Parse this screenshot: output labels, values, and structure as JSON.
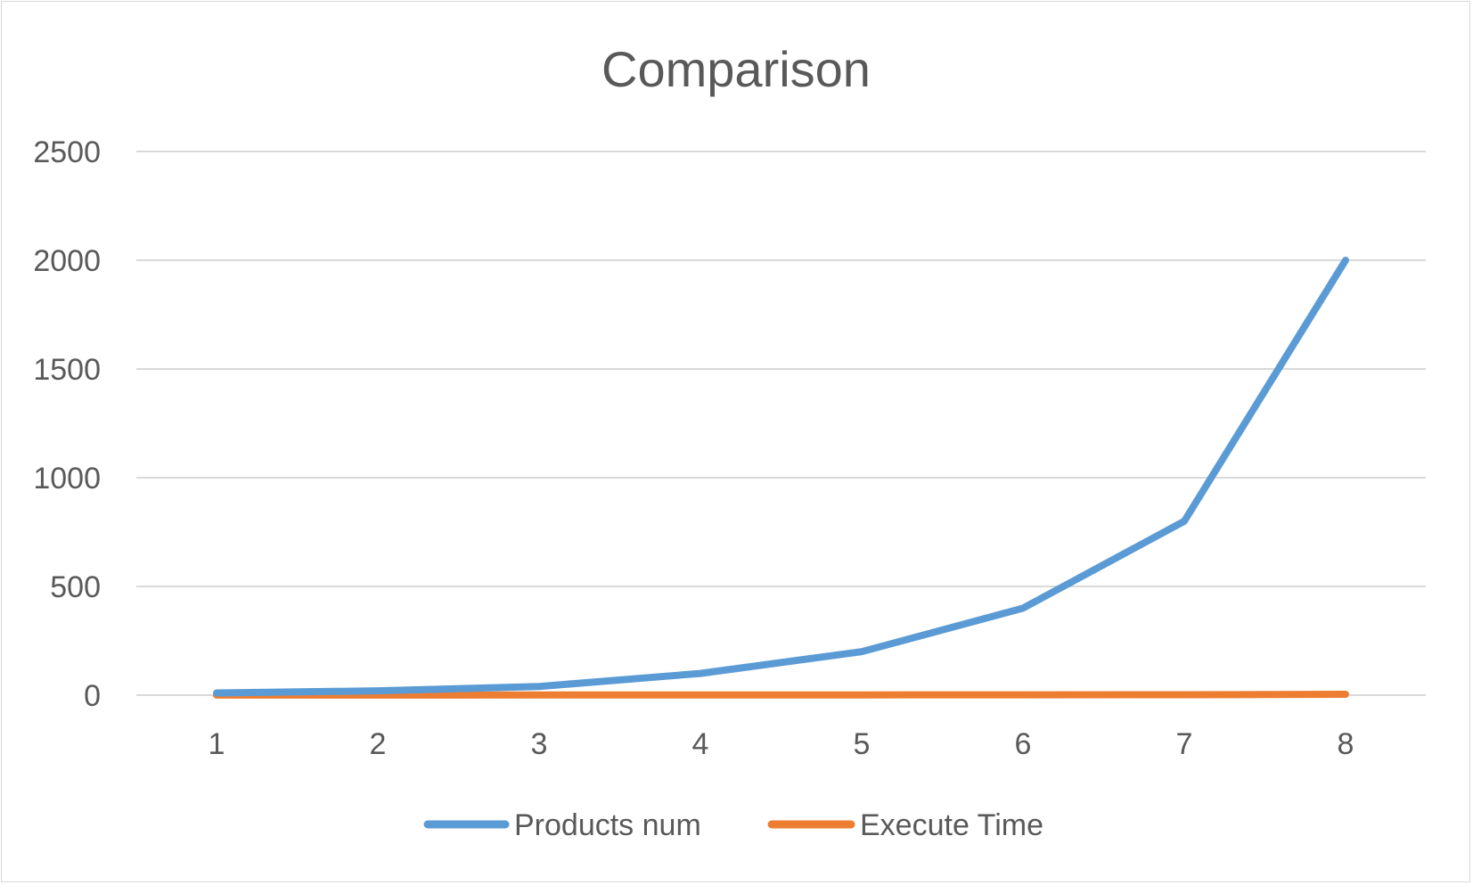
{
  "chart_data": {
    "type": "line",
    "title": "Comparison",
    "xlabel": "",
    "ylabel": "",
    "categories": [
      "1",
      "2",
      "3",
      "4",
      "5",
      "6",
      "7",
      "8"
    ],
    "ylim": [
      0,
      2500
    ],
    "yticks": [
      0,
      500,
      1000,
      1500,
      2000,
      2500
    ],
    "grid": true,
    "legend_position": "bottom",
    "series": [
      {
        "name": "Products num",
        "color": "#5b9bd5",
        "values": [
          10,
          20,
          40,
          100,
          200,
          400,
          800,
          2000
        ]
      },
      {
        "name": "Execute Time",
        "color": "#ed7d31",
        "values": [
          0.5,
          0.6,
          0.8,
          1,
          1.2,
          1.5,
          2,
          4
        ]
      }
    ]
  }
}
